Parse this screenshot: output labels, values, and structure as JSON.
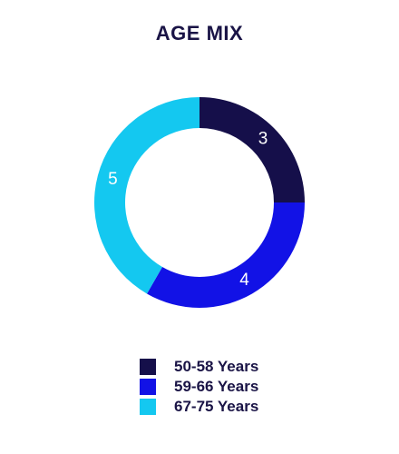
{
  "chart_data": {
    "type": "pie",
    "title": "AGE MIX",
    "categories": [
      "50-58 Years",
      "59-66 Years",
      "67-75 Years"
    ],
    "values": [
      3,
      4,
      5
    ],
    "colors": [
      "#150f4a",
      "#1212e6",
      "#14c8f0"
    ],
    "data_labels": [
      "3",
      "4",
      "5"
    ],
    "donut": true,
    "legend_position": "bottom"
  }
}
